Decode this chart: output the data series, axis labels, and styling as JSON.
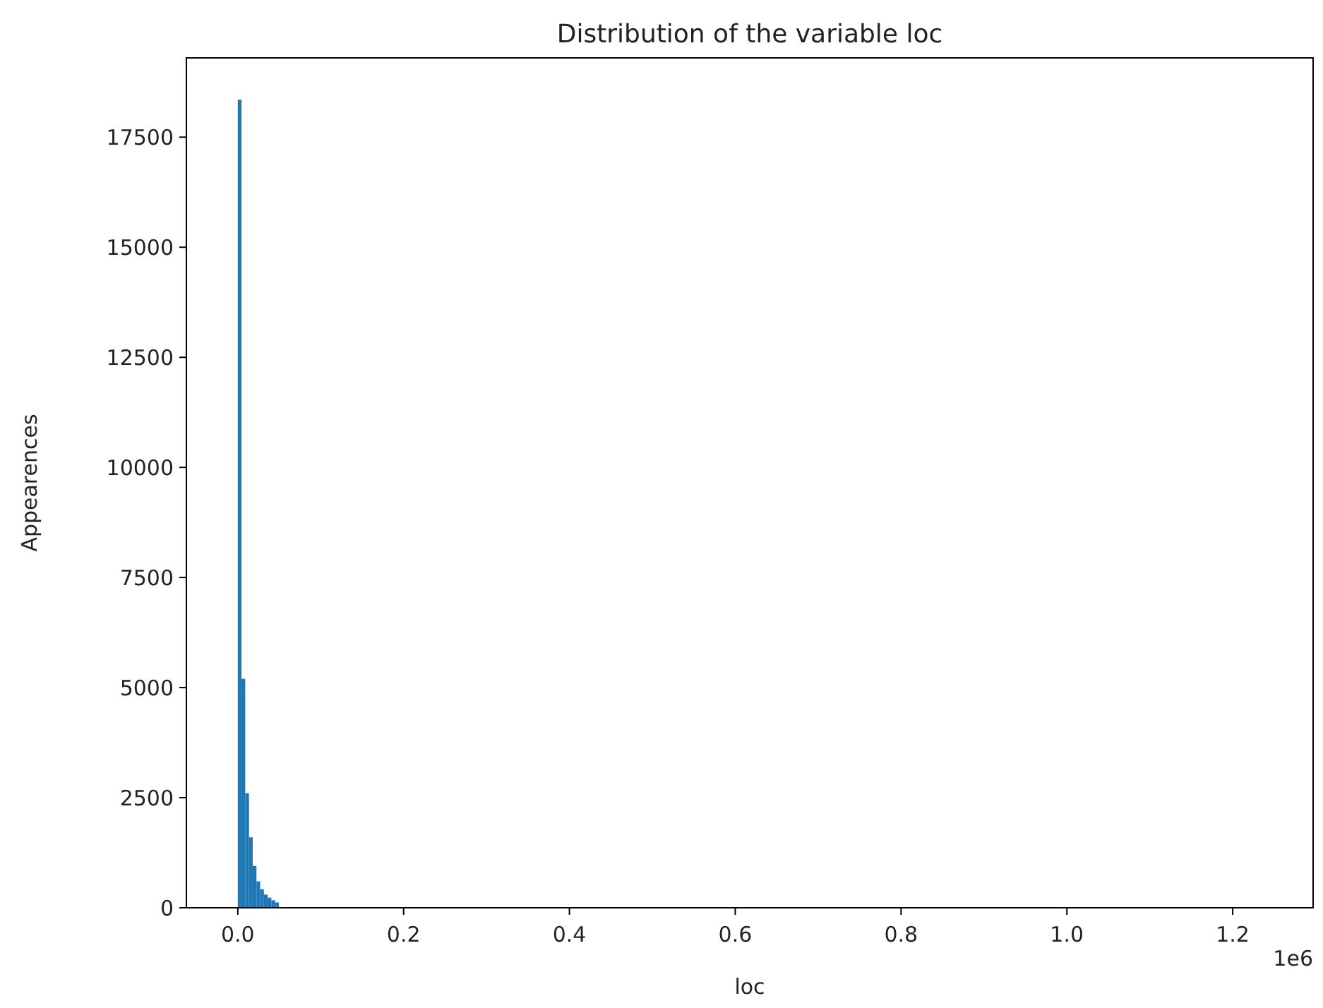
{
  "chart_data": {
    "type": "histogram",
    "title": "Distribution of the variable loc",
    "xlabel": "loc",
    "ylabel": "Appearences",
    "bins": [
      0,
      0.0045,
      0.009,
      0.0135,
      0.018,
      0.0225,
      0.027,
      0.0315,
      0.036,
      0.0405,
      0.045,
      0.0495
    ],
    "values": [
      18350,
      5200,
      2600,
      1600,
      950,
      600,
      420,
      300,
      230,
      170,
      120
    ],
    "color": "#1f77b4",
    "xlim": [
      -0.062,
      1.297
    ],
    "xticks": [
      {
        "value": 0,
        "label": "0.0"
      },
      0.2,
      0.4,
      0.6,
      0.8,
      {
        "value": 1,
        "label": "1.0"
      },
      1.2
    ],
    "annotations": [
      "1e6"
    ],
    "ylim": [
      0,
      19300
    ],
    "yticks": [
      0,
      2500,
      5000,
      7500,
      10000,
      12500,
      15000,
      17500
    ]
  }
}
